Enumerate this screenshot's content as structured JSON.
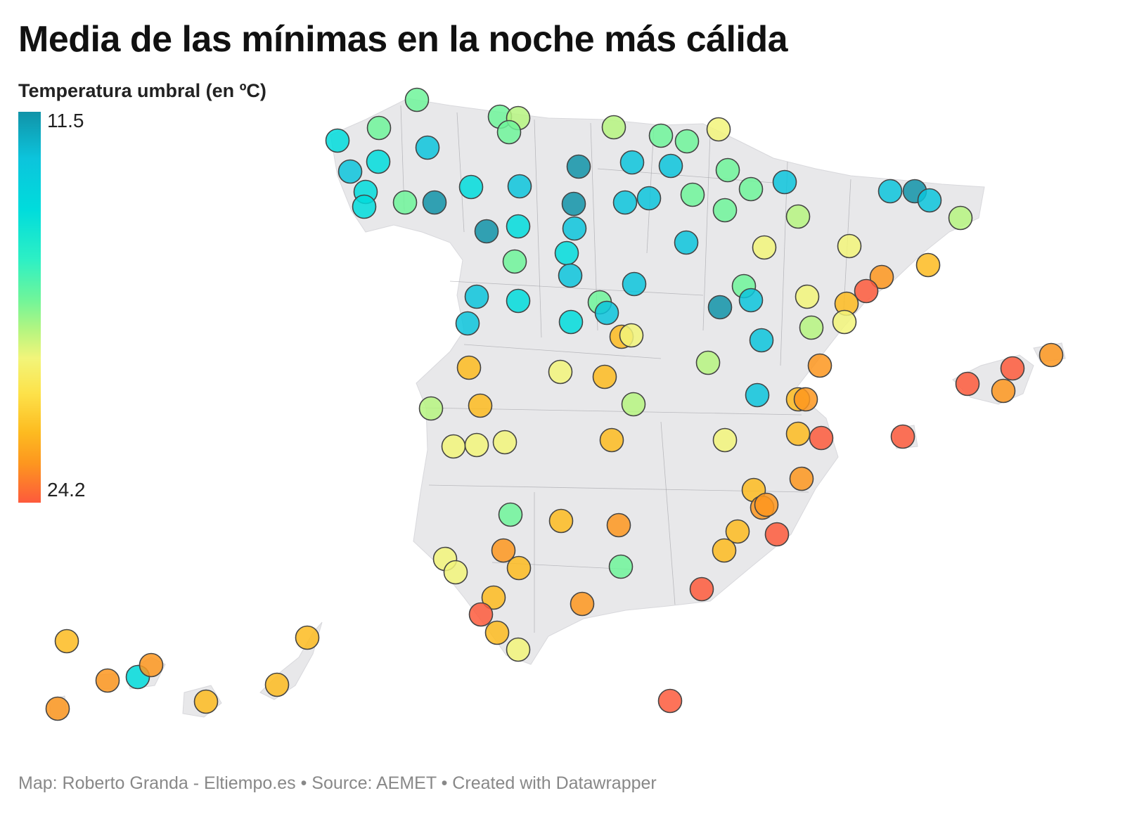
{
  "title": "Media de las mínimas en la noche más cálida",
  "legend": {
    "title": "Temperatura umbral (en ºC)",
    "min": "11.5",
    "max": "24.2",
    "colors": [
      "#1193a8",
      "#0cc4dc",
      "#00dcdc",
      "#2ef0c4",
      "#6ff59a",
      "#b6f580",
      "#f2f57a",
      "#fde24a",
      "#fdbb20",
      "#fd961f",
      "#fd5a3c"
    ]
  },
  "map": {
    "land_color": "#e8e8ea",
    "marker_type": "circle",
    "color_scale": "continuous"
  },
  "footer": "Map: Roberto Granda - Eltiempo.es • Source: AEMET • Created with Datawrapper"
}
